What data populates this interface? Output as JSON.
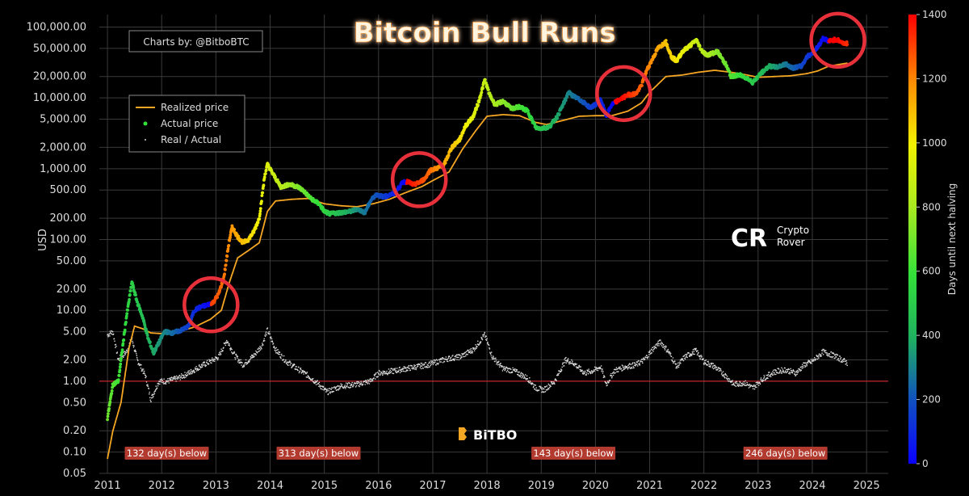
{
  "title": "Bitcoin Bull Runs",
  "credit": "Charts by: @BitboBTC",
  "watermark": {
    "bitbo": "BiTBO",
    "crypto_rover": [
      "Crypto",
      "Rover"
    ],
    "crypto_rover_logo": "CR"
  },
  "chart_data": {
    "type": "scatter",
    "title": "Bitcoin Bull Runs",
    "ylabel": "USD",
    "yscale": "log",
    "ylim": [
      0.05,
      150000
    ],
    "xlim": [
      2010.85,
      2025.4
    ],
    "grid": true,
    "legend": {
      "placement": "top-left",
      "entries": [
        "Realized price",
        "Actual price",
        "Real / Actual"
      ]
    },
    "x_ticks": [
      "2011",
      "2012",
      "2013",
      "2014",
      "2015",
      "2016",
      "2017",
      "2018",
      "2019",
      "2020",
      "2021",
      "2022",
      "2023",
      "2024",
      "2025"
    ],
    "y_ticks": [
      {
        "value": 100000,
        "label": "100,000.00"
      },
      {
        "value": 50000,
        "label": "50,000.00"
      },
      {
        "value": 20000,
        "label": "20,000.00"
      },
      {
        "value": 10000,
        "label": "10,000.00"
      },
      {
        "value": 5000,
        "label": "5,000.00"
      },
      {
        "value": 2000,
        "label": "2,000.00"
      },
      {
        "value": 1000,
        "label": "1,000.00"
      },
      {
        "value": 500,
        "label": "500.00"
      },
      {
        "value": 200,
        "label": "200.00"
      },
      {
        "value": 100,
        "label": "100.00"
      },
      {
        "value": 50,
        "label": "50.00"
      },
      {
        "value": 20,
        "label": "20.00"
      },
      {
        "value": 10,
        "label": "10.00"
      },
      {
        "value": 5,
        "label": "5.00"
      },
      {
        "value": 2,
        "label": "2.00"
      },
      {
        "value": 1,
        "label": "1.00"
      },
      {
        "value": 0.5,
        "label": "0.50"
      },
      {
        "value": 0.2,
        "label": "0.20"
      },
      {
        "value": 0.1,
        "label": "0.10"
      },
      {
        "value": 0.05,
        "label": "0.05"
      }
    ],
    "reference_line": {
      "value": 1.0,
      "color": "#c0262b"
    },
    "colorbar": {
      "label": "Days until next halving",
      "min": 0,
      "max": 1400,
      "ticks": [
        "0",
        "200",
        "400",
        "600",
        "800",
        "1000",
        "1200",
        "1400"
      ]
    },
    "halvings": [
      2012.91,
      2016.52,
      2020.36,
      2024.3
    ],
    "actual_price": [
      [
        2011.0,
        0.3
      ],
      [
        2011.1,
        0.9
      ],
      [
        2011.2,
        1.0
      ],
      [
        2011.35,
        8
      ],
      [
        2011.45,
        25
      ],
      [
        2011.55,
        13
      ],
      [
        2011.65,
        8
      ],
      [
        2011.75,
        4
      ],
      [
        2011.85,
        2.5
      ],
      [
        2011.95,
        3.5
      ],
      [
        2012.05,
        5
      ],
      [
        2012.2,
        4.8
      ],
      [
        2012.35,
        5.2
      ],
      [
        2012.5,
        6
      ],
      [
        2012.6,
        10
      ],
      [
        2012.7,
        11
      ],
      [
        2012.85,
        12
      ],
      [
        2012.95,
        13
      ],
      [
        2013.05,
        17
      ],
      [
        2013.15,
        30
      ],
      [
        2013.25,
        100
      ],
      [
        2013.3,
        150
      ],
      [
        2013.4,
        110
      ],
      [
        2013.5,
        90
      ],
      [
        2013.6,
        100
      ],
      [
        2013.7,
        130
      ],
      [
        2013.8,
        200
      ],
      [
        2013.9,
        800
      ],
      [
        2013.95,
        1150
      ],
      [
        2014.05,
        850
      ],
      [
        2014.2,
        550
      ],
      [
        2014.35,
        600
      ],
      [
        2014.5,
        560
      ],
      [
        2014.6,
        500
      ],
      [
        2014.75,
        380
      ],
      [
        2014.9,
        320
      ],
      [
        2015.0,
        250
      ],
      [
        2015.1,
        230
      ],
      [
        2015.3,
        240
      ],
      [
        2015.5,
        250
      ],
      [
        2015.6,
        270
      ],
      [
        2015.75,
        240
      ],
      [
        2015.85,
        350
      ],
      [
        2015.95,
        430
      ],
      [
        2016.1,
        400
      ],
      [
        2016.3,
        450
      ],
      [
        2016.45,
        650
      ],
      [
        2016.55,
        650
      ],
      [
        2016.65,
        590
      ],
      [
        2016.75,
        640
      ],
      [
        2016.85,
        720
      ],
      [
        2016.95,
        950
      ],
      [
        2017.05,
        1000
      ],
      [
        2017.2,
        1100
      ],
      [
        2017.35,
        2000
      ],
      [
        2017.5,
        2600
      ],
      [
        2017.6,
        4000
      ],
      [
        2017.75,
        5500
      ],
      [
        2017.85,
        9000
      ],
      [
        2017.96,
        18000
      ],
      [
        2018.05,
        11000
      ],
      [
        2018.15,
        8000
      ],
      [
        2018.3,
        9000
      ],
      [
        2018.45,
        7000
      ],
      [
        2018.6,
        7500
      ],
      [
        2018.75,
        6500
      ],
      [
        2018.9,
        3800
      ],
      [
        2019.0,
        3700
      ],
      [
        2019.15,
        3900
      ],
      [
        2019.3,
        5500
      ],
      [
        2019.45,
        9500
      ],
      [
        2019.5,
        12000
      ],
      [
        2019.6,
        10500
      ],
      [
        2019.75,
        9000
      ],
      [
        2019.9,
        7300
      ],
      [
        2020.0,
        8000
      ],
      [
        2020.1,
        9500
      ],
      [
        2020.2,
        5500
      ],
      [
        2020.3,
        8000
      ],
      [
        2020.45,
        9500
      ],
      [
        2020.6,
        11000
      ],
      [
        2020.75,
        11500
      ],
      [
        2020.85,
        15000
      ],
      [
        2020.95,
        25000
      ],
      [
        2021.05,
        35000
      ],
      [
        2021.15,
        50000
      ],
      [
        2021.3,
        62000
      ],
      [
        2021.4,
        38000
      ],
      [
        2021.5,
        33000
      ],
      [
        2021.6,
        45000
      ],
      [
        2021.75,
        55000
      ],
      [
        2021.86,
        66000
      ],
      [
        2021.95,
        48000
      ],
      [
        2022.05,
        40000
      ],
      [
        2022.25,
        45000
      ],
      [
        2022.4,
        30000
      ],
      [
        2022.5,
        20000
      ],
      [
        2022.65,
        21000
      ],
      [
        2022.8,
        19000
      ],
      [
        2022.9,
        16500
      ],
      [
        2023.05,
        22000
      ],
      [
        2023.2,
        28000
      ],
      [
        2023.35,
        27000
      ],
      [
        2023.5,
        30000
      ],
      [
        2023.65,
        26500
      ],
      [
        2023.8,
        28000
      ],
      [
        2023.9,
        38000
      ],
      [
        2024.0,
        43000
      ],
      [
        2024.1,
        52000
      ],
      [
        2024.2,
        70000
      ],
      [
        2024.3,
        63000
      ],
      [
        2024.45,
        67000
      ],
      [
        2024.55,
        60000
      ],
      [
        2024.65,
        58000
      ]
    ],
    "realized_price": [
      [
        2011.0,
        0.08
      ],
      [
        2011.1,
        0.2
      ],
      [
        2011.25,
        0.5
      ],
      [
        2011.4,
        3
      ],
      [
        2011.5,
        6
      ],
      [
        2011.65,
        5.5
      ],
      [
        2011.8,
        4.8
      ],
      [
        2012.0,
        4.7
      ],
      [
        2012.3,
        5.0
      ],
      [
        2012.6,
        5.8
      ],
      [
        2012.9,
        7.5
      ],
      [
        2013.1,
        10
      ],
      [
        2013.25,
        25
      ],
      [
        2013.4,
        55
      ],
      [
        2013.6,
        70
      ],
      [
        2013.8,
        90
      ],
      [
        2013.95,
        250
      ],
      [
        2014.1,
        350
      ],
      [
        2014.4,
        370
      ],
      [
        2014.7,
        380
      ],
      [
        2015.0,
        320
      ],
      [
        2015.3,
        300
      ],
      [
        2015.6,
        290
      ],
      [
        2015.9,
        320
      ],
      [
        2016.2,
        370
      ],
      [
        2016.5,
        460
      ],
      [
        2016.8,
        560
      ],
      [
        2017.0,
        680
      ],
      [
        2017.3,
        900
      ],
      [
        2017.55,
        1900
      ],
      [
        2017.8,
        3500
      ],
      [
        2018.0,
        5500
      ],
      [
        2018.3,
        5800
      ],
      [
        2018.6,
        5600
      ],
      [
        2018.9,
        4500
      ],
      [
        2019.1,
        4200
      ],
      [
        2019.4,
        4800
      ],
      [
        2019.7,
        5500
      ],
      [
        2020.0,
        5600
      ],
      [
        2020.3,
        5600
      ],
      [
        2020.6,
        6500
      ],
      [
        2020.85,
        8500
      ],
      [
        2021.0,
        12000
      ],
      [
        2021.3,
        20000
      ],
      [
        2021.6,
        21000
      ],
      [
        2021.9,
        23000
      ],
      [
        2022.2,
        24500
      ],
      [
        2022.5,
        23000
      ],
      [
        2022.8,
        21000
      ],
      [
        2023.0,
        19500
      ],
      [
        2023.3,
        20000
      ],
      [
        2023.6,
        20500
      ],
      [
        2023.9,
        22000
      ],
      [
        2024.1,
        24000
      ],
      [
        2024.3,
        28000
      ],
      [
        2024.65,
        31000
      ]
    ],
    "real_over_actual": [
      [
        2011.0,
        4.5
      ],
      [
        2011.1,
        5
      ],
      [
        2011.2,
        2
      ],
      [
        2011.35,
        2.6
      ],
      [
        2011.45,
        4
      ],
      [
        2011.55,
        2
      ],
      [
        2011.7,
        1.2
      ],
      [
        2011.8,
        0.55
      ],
      [
        2011.95,
        1.0
      ],
      [
        2012.1,
        1.0
      ],
      [
        2012.3,
        1.1
      ],
      [
        2012.5,
        1.3
      ],
      [
        2012.7,
        1.6
      ],
      [
        2012.9,
        1.9
      ],
      [
        2013.05,
        2.2
      ],
      [
        2013.2,
        3.8
      ],
      [
        2013.35,
        2.3
      ],
      [
        2013.5,
        1.7
      ],
      [
        2013.7,
        2.3
      ],
      [
        2013.85,
        3.2
      ],
      [
        2013.95,
        5.3
      ],
      [
        2014.1,
        2.8
      ],
      [
        2014.3,
        1.9
      ],
      [
        2014.5,
        1.5
      ],
      [
        2014.7,
        1.2
      ],
      [
        2014.9,
        0.9
      ],
      [
        2015.05,
        0.7
      ],
      [
        2015.3,
        0.85
      ],
      [
        2015.6,
        0.9
      ],
      [
        2015.85,
        1.0
      ],
      [
        2016.0,
        1.3
      ],
      [
        2016.3,
        1.4
      ],
      [
        2016.5,
        1.5
      ],
      [
        2016.7,
        1.6
      ],
      [
        2016.9,
        1.7
      ],
      [
        2017.1,
        1.9
      ],
      [
        2017.3,
        2.1
      ],
      [
        2017.5,
        2.2
      ],
      [
        2017.75,
        2.8
      ],
      [
        2017.96,
        4.5
      ],
      [
        2018.1,
        2.2
      ],
      [
        2018.3,
        1.5
      ],
      [
        2018.5,
        1.4
      ],
      [
        2018.75,
        1.1
      ],
      [
        2018.9,
        0.8
      ],
      [
        2019.05,
        0.75
      ],
      [
        2019.25,
        1.0
      ],
      [
        2019.45,
        2.0
      ],
      [
        2019.6,
        1.8
      ],
      [
        2019.8,
        1.3
      ],
      [
        2019.95,
        1.4
      ],
      [
        2020.1,
        1.6
      ],
      [
        2020.2,
        0.9
      ],
      [
        2020.35,
        1.4
      ],
      [
        2020.55,
        1.6
      ],
      [
        2020.75,
        1.7
      ],
      [
        2020.9,
        2.0
      ],
      [
        2021.05,
        2.8
      ],
      [
        2021.2,
        3.6
      ],
      [
        2021.35,
        2.6
      ],
      [
        2021.5,
        1.6
      ],
      [
        2021.65,
        2.2
      ],
      [
        2021.85,
        2.7
      ],
      [
        2022.0,
        1.9
      ],
      [
        2022.2,
        1.6
      ],
      [
        2022.4,
        1.2
      ],
      [
        2022.55,
        0.9
      ],
      [
        2022.75,
        0.95
      ],
      [
        2022.9,
        0.8
      ],
      [
        2023.1,
        1.1
      ],
      [
        2023.3,
        1.35
      ],
      [
        2023.5,
        1.45
      ],
      [
        2023.7,
        1.3
      ],
      [
        2023.85,
        1.7
      ],
      [
        2024.0,
        1.9
      ],
      [
        2024.2,
        2.6
      ],
      [
        2024.4,
        2.3
      ],
      [
        2024.55,
        2.0
      ],
      [
        2024.65,
        1.8
      ]
    ],
    "annotations": [
      {
        "text": "132 day(s) below",
        "x": 2011.17
      },
      {
        "text": "313 day(s) below",
        "x": 2013.97
      },
      {
        "text": "143 day(s) below",
        "x": 2018.67
      },
      {
        "text": "246 day(s) below",
        "x": 2022.58
      }
    ],
    "circles": [
      {
        "x": 2012.91,
        "y": 12
      },
      {
        "x": 2016.75,
        "y": 700
      },
      {
        "x": 2020.52,
        "y": 11500
      },
      {
        "x": 2024.47,
        "y": 65000
      }
    ]
  }
}
